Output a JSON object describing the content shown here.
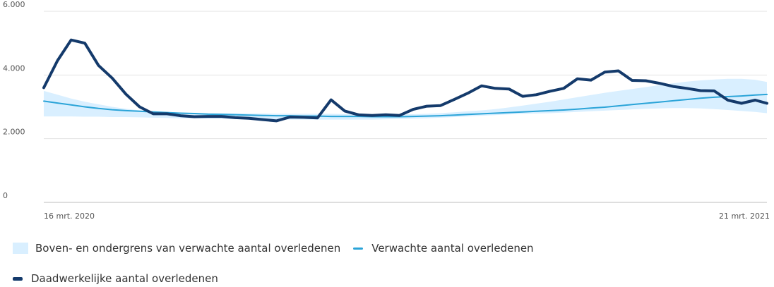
{
  "chart_data": {
    "type": "line",
    "ylim": [
      0,
      6000
    ],
    "y_ticks": [
      {
        "value": 0,
        "label": "0"
      },
      {
        "value": 2000,
        "label": "2.000"
      },
      {
        "value": 4000,
        "label": "4.000"
      },
      {
        "value": 6000,
        "label": "6.000"
      }
    ],
    "x_tick_labels": {
      "start": "16 mrt. 2020",
      "end": "21 mrt. 2021"
    },
    "grid": true,
    "legend_placement": "bottom",
    "x": [
      "2020-03-16",
      "2020-03-23",
      "2020-03-30",
      "2020-04-06",
      "2020-04-13",
      "2020-04-20",
      "2020-04-27",
      "2020-05-04",
      "2020-05-11",
      "2020-05-18",
      "2020-05-25",
      "2020-06-01",
      "2020-06-08",
      "2020-06-15",
      "2020-06-22",
      "2020-06-29",
      "2020-07-06",
      "2020-07-13",
      "2020-07-20",
      "2020-07-27",
      "2020-08-03",
      "2020-08-10",
      "2020-08-17",
      "2020-08-24",
      "2020-08-31",
      "2020-09-07",
      "2020-09-14",
      "2020-09-21",
      "2020-09-28",
      "2020-10-05",
      "2020-10-12",
      "2020-10-19",
      "2020-10-26",
      "2020-11-02",
      "2020-11-09",
      "2020-11-16",
      "2020-11-23",
      "2020-11-30",
      "2020-12-07",
      "2020-12-14",
      "2020-12-21",
      "2020-12-28",
      "2021-01-04",
      "2021-01-11",
      "2021-01-18",
      "2021-01-25",
      "2021-02-01",
      "2021-02-08",
      "2021-02-15",
      "2021-02-22",
      "2021-03-01",
      "2021-03-08",
      "2021-03-15",
      "2021-03-21"
    ],
    "series": [
      {
        "name": "Boven- en ondergrens van verwachte aantal overledenen",
        "kind": "band",
        "color": "#d9efff",
        "upper": [
          3500,
          3380,
          3260,
          3160,
          3080,
          3000,
          2940,
          2890,
          2860,
          2840,
          2820,
          2810,
          2800,
          2800,
          2800,
          2790,
          2790,
          2780,
          2780,
          2780,
          2780,
          2780,
          2770,
          2770,
          2760,
          2760,
          2760,
          2770,
          2780,
          2800,
          2830,
          2860,
          2890,
          2930,
          2980,
          3040,
          3100,
          3160,
          3230,
          3300,
          3370,
          3440,
          3500,
          3560,
          3620,
          3680,
          3740,
          3790,
          3830,
          3860,
          3880,
          3880,
          3850,
          3780
        ],
        "lower": [
          2700,
          2700,
          2700,
          2690,
          2690,
          2680,
          2680,
          2670,
          2660,
          2650,
          2640,
          2640,
          2630,
          2630,
          2620,
          2620,
          2610,
          2610,
          2600,
          2600,
          2600,
          2600,
          2600,
          2600,
          2600,
          2610,
          2620,
          2630,
          2640,
          2660,
          2680,
          2700,
          2720,
          2740,
          2760,
          2780,
          2790,
          2800,
          2820,
          2840,
          2860,
          2880,
          2900,
          2920,
          2940,
          2950,
          2960,
          2960,
          2950,
          2930,
          2900,
          2870,
          2840,
          2800
        ]
      },
      {
        "name": "Verwachte aantal overledenen",
        "kind": "line",
        "color": "#2ba4d8",
        "values": [
          3180,
          3120,
          3060,
          3000,
          2950,
          2910,
          2880,
          2860,
          2840,
          2820,
          2800,
          2790,
          2770,
          2760,
          2750,
          2740,
          2730,
          2720,
          2720,
          2710,
          2710,
          2700,
          2700,
          2700,
          2690,
          2690,
          2690,
          2700,
          2710,
          2720,
          2740,
          2760,
          2780,
          2800,
          2820,
          2840,
          2860,
          2880,
          2900,
          2930,
          2960,
          2990,
          3030,
          3070,
          3110,
          3150,
          3190,
          3230,
          3270,
          3300,
          3320,
          3340,
          3370,
          3390
        ]
      },
      {
        "name": "Daadwerkelijke aantal overledenen",
        "kind": "line",
        "color": "#143a6b",
        "values": [
          3600,
          4450,
          5100,
          5000,
          4300,
          3900,
          3400,
          3000,
          2780,
          2780,
          2720,
          2690,
          2700,
          2700,
          2660,
          2640,
          2600,
          2560,
          2680,
          2670,
          2650,
          3220,
          2870,
          2750,
          2730,
          2750,
          2730,
          2920,
          3020,
          3040,
          3230,
          3430,
          3660,
          3580,
          3560,
          3330,
          3380,
          3490,
          3580,
          3880,
          3840,
          4090,
          4130,
          3830,
          3820,
          3740,
          3640,
          3580,
          3510,
          3500,
          3210,
          3110,
          3210,
          3110
        ]
      }
    ]
  }
}
